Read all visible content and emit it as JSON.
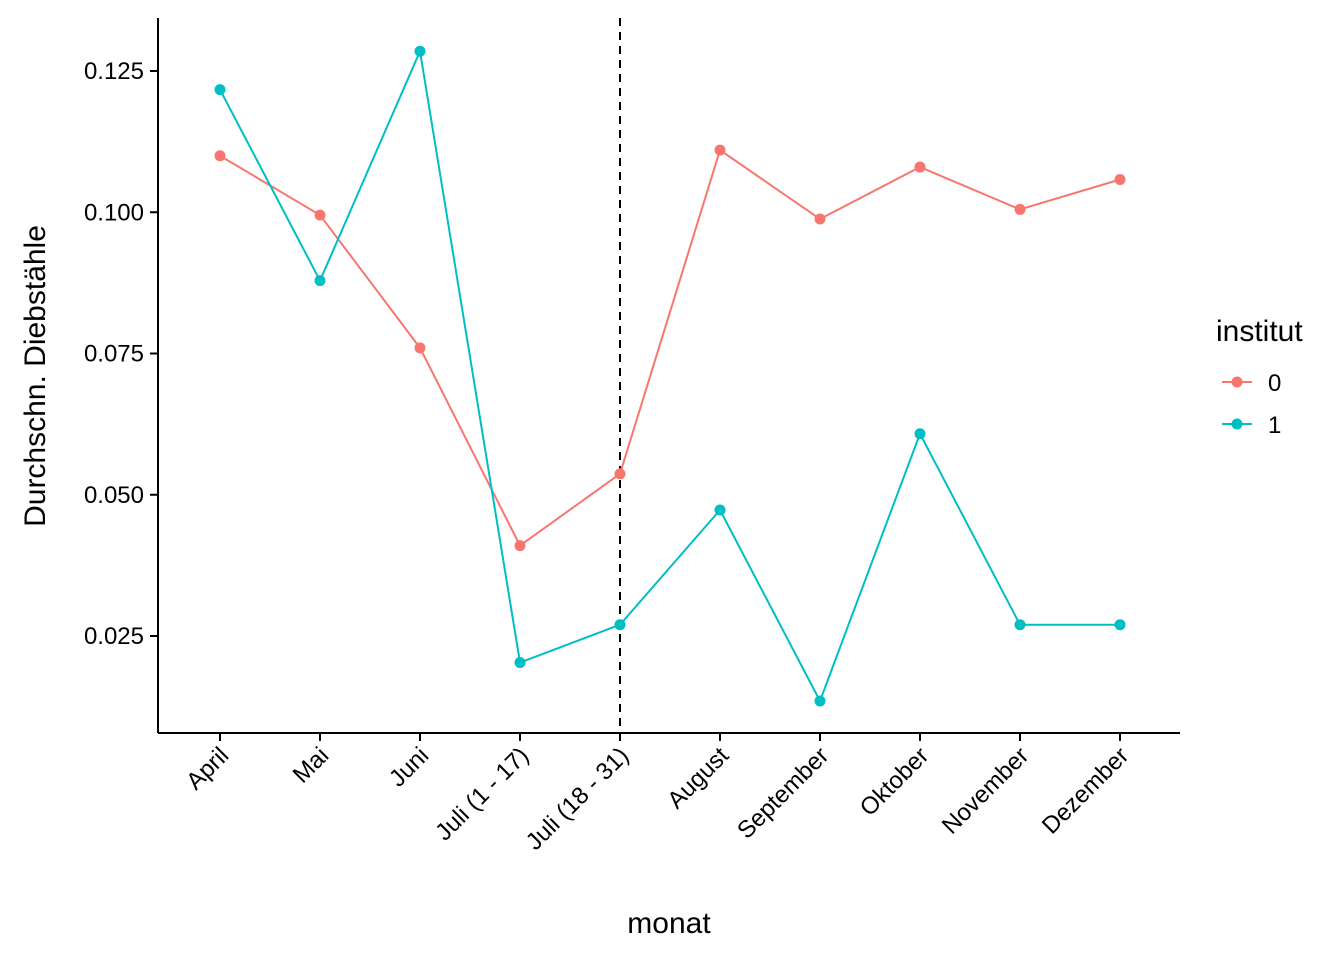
{
  "chart_data": {
    "type": "line",
    "xlabel": "monat",
    "ylabel": "Durchschn. Diebstähle",
    "categories": [
      "April",
      "Mai",
      "Juni",
      "Juli (1 - 17)",
      "Juli (18 - 31)",
      "August",
      "September",
      "Oktober",
      "November",
      "Dezember"
    ],
    "y_ticks": [
      0.025,
      0.05,
      0.075,
      0.1,
      0.125
    ],
    "y_tick_labels": [
      "0.025",
      "0.050",
      "0.075",
      "0.100",
      "0.125"
    ],
    "ylim": [
      0.0084,
      0.1345
    ],
    "vline_category": "Juli (18 - 31)",
    "vline_style": "dashed",
    "grid": false,
    "legend": {
      "title": "institut",
      "placement": "right"
    },
    "series": [
      {
        "name": "0",
        "color": "#F8766D",
        "values": [
          0.11,
          0.0995,
          0.076,
          0.041,
          0.0537,
          0.111,
          0.0988,
          0.108,
          0.1005,
          0.1058
        ]
      },
      {
        "name": "1",
        "color": "#00BFC4",
        "values": [
          0.1217,
          0.0879,
          0.1285,
          0.0203,
          0.027,
          0.0473,
          0.0135,
          0.0608,
          0.027,
          0.027
        ]
      }
    ]
  }
}
